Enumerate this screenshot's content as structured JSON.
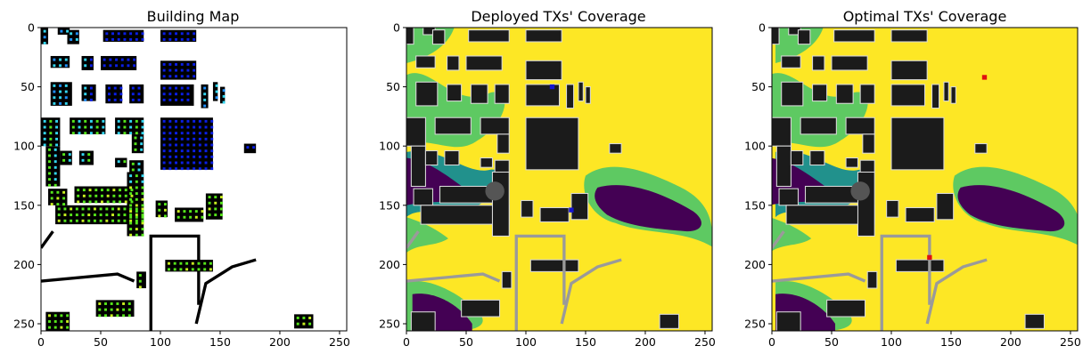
{
  "chart_data": [
    {
      "type": "heatmap",
      "title": "Building Map",
      "xlim": [
        0,
        256
      ],
      "ylim": [
        256,
        0
      ],
      "xticks": [
        0,
        50,
        100,
        150,
        200,
        250
      ],
      "yticks": [
        0,
        50,
        100,
        150,
        200,
        250
      ],
      "tick_labels_x": [
        "0",
        "50",
        "100",
        "150",
        "200",
        "250"
      ],
      "tick_labels_y": [
        "0",
        "50",
        "100",
        "150",
        "200",
        "250"
      ],
      "background": "#ffffff",
      "building_color": "#000000",
      "dot_colors": [
        "#0a1ee6",
        "#1e90ff",
        "#33d6f0",
        "#55e51a",
        "#c8f020"
      ],
      "buildings": [
        {
          "x": 0,
          "y": 0,
          "w": 6,
          "h": 14
        },
        {
          "x": 14,
          "y": 0,
          "w": 10,
          "h": 6
        },
        {
          "x": 22,
          "y": 2,
          "w": 10,
          "h": 12
        },
        {
          "x": 52,
          "y": 2,
          "w": 34,
          "h": 10
        },
        {
          "x": 100,
          "y": 2,
          "w": 30,
          "h": 10
        },
        {
          "x": 8,
          "y": 24,
          "w": 16,
          "h": 10
        },
        {
          "x": 34,
          "y": 24,
          "w": 10,
          "h": 12
        },
        {
          "x": 50,
          "y": 24,
          "w": 30,
          "h": 12
        },
        {
          "x": 100,
          "y": 28,
          "w": 30,
          "h": 16
        },
        {
          "x": 8,
          "y": 46,
          "w": 18,
          "h": 20
        },
        {
          "x": 34,
          "y": 48,
          "w": 12,
          "h": 14
        },
        {
          "x": 54,
          "y": 48,
          "w": 14,
          "h": 16
        },
        {
          "x": 74,
          "y": 48,
          "w": 12,
          "h": 16
        },
        {
          "x": 100,
          "y": 48,
          "w": 28,
          "h": 18
        },
        {
          "x": 134,
          "y": 48,
          "w": 6,
          "h": 20
        },
        {
          "x": 144,
          "y": 46,
          "w": 4,
          "h": 16
        },
        {
          "x": 150,
          "y": 50,
          "w": 4,
          "h": 14
        },
        {
          "x": 0,
          "y": 76,
          "w": 16,
          "h": 24
        },
        {
          "x": 24,
          "y": 76,
          "w": 30,
          "h": 14
        },
        {
          "x": 62,
          "y": 76,
          "w": 24,
          "h": 14
        },
        {
          "x": 100,
          "y": 76,
          "w": 44,
          "h": 44
        },
        {
          "x": 76,
          "y": 90,
          "w": 10,
          "h": 16
        },
        {
          "x": 4,
          "y": 100,
          "w": 12,
          "h": 34
        },
        {
          "x": 16,
          "y": 104,
          "w": 10,
          "h": 12
        },
        {
          "x": 32,
          "y": 104,
          "w": 12,
          "h": 12
        },
        {
          "x": 62,
          "y": 110,
          "w": 10,
          "h": 8
        },
        {
          "x": 74,
          "y": 112,
          "w": 12,
          "h": 10
        },
        {
          "x": 6,
          "y": 136,
          "w": 16,
          "h": 14
        },
        {
          "x": 28,
          "y": 134,
          "w": 50,
          "h": 14
        },
        {
          "x": 12,
          "y": 150,
          "w": 74,
          "h": 16
        },
        {
          "x": 72,
          "y": 122,
          "w": 14,
          "h": 54
        },
        {
          "x": 96,
          "y": 146,
          "w": 10,
          "h": 14
        },
        {
          "x": 112,
          "y": 152,
          "w": 24,
          "h": 12
        },
        {
          "x": 138,
          "y": 140,
          "w": 14,
          "h": 22
        },
        {
          "x": 170,
          "y": 98,
          "w": 10,
          "h": 8
        },
        {
          "x": 104,
          "y": 196,
          "w": 40,
          "h": 10
        },
        {
          "x": 80,
          "y": 206,
          "w": 8,
          "h": 14
        },
        {
          "x": 4,
          "y": 240,
          "w": 20,
          "h": 16
        },
        {
          "x": 46,
          "y": 230,
          "w": 32,
          "h": 14
        },
        {
          "x": 212,
          "y": 242,
          "w": 16,
          "h": 12
        }
      ],
      "outlines": [
        {
          "points": [
            [
              92,
              256
            ],
            [
              92,
              176
            ],
            [
              132,
              176
            ],
            [
              132,
              234
            ]
          ]
        },
        {
          "points": [
            [
              0,
              186
            ],
            [
              10,
              172
            ]
          ]
        },
        {
          "points": [
            [
              130,
              250
            ],
            [
              138,
              216
            ],
            [
              160,
              202
            ],
            [
              180,
              196
            ]
          ]
        },
        {
          "points": [
            [
              0,
              214
            ],
            [
              64,
              208
            ],
            [
              78,
              214
            ]
          ]
        }
      ]
    },
    {
      "type": "heatmap",
      "title": "Deployed TXs' Coverage",
      "xlim": [
        0,
        256
      ],
      "ylim": [
        256,
        0
      ],
      "xticks": [
        0,
        50,
        100,
        150,
        200,
        250
      ],
      "yticks": [
        0,
        50,
        100,
        150,
        200,
        250
      ],
      "tick_labels_x": [
        "0",
        "50",
        "100",
        "150",
        "200",
        "250"
      ],
      "tick_labels_y": [
        "0",
        "50",
        "100",
        "150",
        "200",
        "250"
      ],
      "colormap": "viridis",
      "coverage_colors": [
        "#fde725",
        "#5ec962",
        "#21918c",
        "#3b528b",
        "#440154"
      ],
      "building_color": "#1b1b1b",
      "transmitters": [
        {
          "x": 122,
          "y": 50,
          "color": "#1515d0"
        },
        {
          "x": 138,
          "y": 154,
          "color": "#1515d0"
        }
      ]
    },
    {
      "type": "heatmap",
      "title": "Optimal TXs' Coverage",
      "xlim": [
        0,
        256
      ],
      "ylim": [
        256,
        0
      ],
      "xticks": [
        0,
        50,
        100,
        150,
        200,
        250
      ],
      "yticks": [
        0,
        50,
        100,
        150,
        200,
        250
      ],
      "tick_labels_x": [
        "0",
        "50",
        "100",
        "150",
        "200",
        "250"
      ],
      "tick_labels_y": [
        "0",
        "50",
        "100",
        "150",
        "200",
        "250"
      ],
      "colormap": "viridis",
      "coverage_colors": [
        "#fde725",
        "#5ec962",
        "#21918c",
        "#3b528b",
        "#440154"
      ],
      "building_color": "#1b1b1b",
      "transmitters": [
        {
          "x": 178,
          "y": 42,
          "color": "#e01010"
        },
        {
          "x": 132,
          "y": 194,
          "color": "#e01010"
        }
      ]
    }
  ]
}
